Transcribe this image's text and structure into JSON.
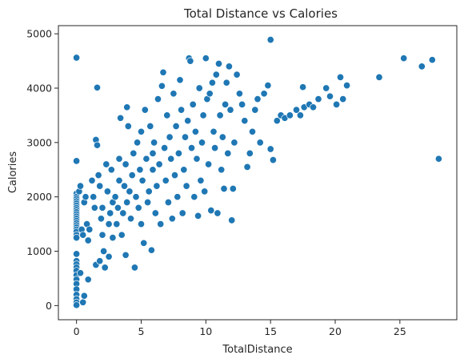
{
  "chart_data": {
    "type": "scatter",
    "title": "Total Distance vs Calories",
    "xlabel": "TotalDistance",
    "ylabel": "Calories",
    "xlim": [
      -1.4,
      29.4
    ],
    "ylim": [
      -260,
      5150
    ],
    "xticks": [
      0,
      5,
      10,
      15,
      20,
      25
    ],
    "yticks": [
      0,
      1000,
      2000,
      3000,
      4000,
      5000
    ],
    "grid": false,
    "color": "#1f77b4",
    "points": [
      [
        0,
        4560
      ],
      [
        0,
        2660
      ],
      [
        0,
        2060
      ],
      [
        0,
        2000
      ],
      [
        0,
        1960
      ],
      [
        0,
        1920
      ],
      [
        0,
        1880
      ],
      [
        0,
        1840
      ],
      [
        0,
        1800
      ],
      [
        0,
        1760
      ],
      [
        0,
        1720
      ],
      [
        0,
        1680
      ],
      [
        0,
        1640
      ],
      [
        0,
        1600
      ],
      [
        0,
        1560
      ],
      [
        0,
        1520
      ],
      [
        0,
        1480
      ],
      [
        0,
        1440
      ],
      [
        0,
        1400
      ],
      [
        0,
        1360
      ],
      [
        0,
        1300
      ],
      [
        0,
        1250
      ],
      [
        0,
        950
      ],
      [
        0,
        820
      ],
      [
        0,
        760
      ],
      [
        0,
        700
      ],
      [
        0,
        640
      ],
      [
        0,
        560
      ],
      [
        0,
        480
      ],
      [
        0,
        400
      ],
      [
        0,
        300
      ],
      [
        0,
        200
      ],
      [
        0,
        120
      ],
      [
        0,
        60
      ],
      [
        0,
        10
      ],
      [
        0.2,
        2100
      ],
      [
        0.3,
        2200
      ],
      [
        0.4,
        1400
      ],
      [
        0.5,
        1300
      ],
      [
        0.3,
        600
      ],
      [
        0.5,
        60
      ],
      [
        0.6,
        180
      ],
      [
        0.6,
        1900
      ],
      [
        0.7,
        2000
      ],
      [
        0.8,
        1500
      ],
      [
        0.9,
        1200
      ],
      [
        1.0,
        1400
      ],
      [
        0.9,
        480
      ],
      [
        1.2,
        2300
      ],
      [
        1.3,
        2000
      ],
      [
        1.4,
        1800
      ],
      [
        1.5,
        3050
      ],
      [
        1.6,
        2950
      ],
      [
        1.6,
        4010
      ],
      [
        1.7,
        2400
      ],
      [
        1.8,
        2200
      ],
      [
        1.9,
        1600
      ],
      [
        2.0,
        1800
      ],
      [
        2.0,
        1300
      ],
      [
        1.5,
        750
      ],
      [
        1.8,
        820
      ],
      [
        2.1,
        1000
      ],
      [
        2.2,
        700
      ],
      [
        2.3,
        2600
      ],
      [
        2.4,
        2100
      ],
      [
        2.5,
        1500
      ],
      [
        2.6,
        1700
      ],
      [
        2.7,
        2500
      ],
      [
        2.8,
        1900
      ],
      [
        2.8,
        1250
      ],
      [
        2.5,
        900
      ],
      [
        3.0,
        2000
      ],
      [
        3.1,
        1500
      ],
      [
        3.2,
        1800
      ],
      [
        3.3,
        2300
      ],
      [
        3.3,
        2700
      ],
      [
        3.4,
        3450
      ],
      [
        3.5,
        1300
      ],
      [
        3.6,
        1700
      ],
      [
        3.7,
        2200
      ],
      [
        3.8,
        2600
      ],
      [
        3.9,
        1900
      ],
      [
        3.9,
        3650
      ],
      [
        3.8,
        930
      ],
      [
        4.0,
        3300
      ],
      [
        4.1,
        2100
      ],
      [
        4.2,
        1600
      ],
      [
        4.3,
        2400
      ],
      [
        4.4,
        2800
      ],
      [
        4.5,
        700
      ],
      [
        4.6,
        2000
      ],
      [
        4.7,
        3000
      ],
      [
        4.8,
        1800
      ],
      [
        4.9,
        2500
      ],
      [
        5.0,
        3200
      ],
      [
        5.0,
        1500
      ],
      [
        5.1,
        2300
      ],
      [
        5.2,
        1150
      ],
      [
        5.3,
        3600
      ],
      [
        5.4,
        2700
      ],
      [
        5.5,
        1900
      ],
      [
        5.6,
        2100
      ],
      [
        5.7,
        3300
      ],
      [
        5.8,
        1020
      ],
      [
        5.9,
        2800
      ],
      [
        5.9,
        2500
      ],
      [
        6.0,
        3000
      ],
      [
        6.1,
        1700
      ],
      [
        6.2,
        2200
      ],
      [
        6.3,
        3800
      ],
      [
        6.4,
        2600
      ],
      [
        6.5,
        1500
      ],
      [
        6.6,
        4040
      ],
      [
        6.7,
        4290
      ],
      [
        6.8,
        2900
      ],
      [
        6.9,
        2300
      ],
      [
        7.0,
        3500
      ],
      [
        7.1,
        1900
      ],
      [
        7.2,
        3100
      ],
      [
        7.3,
        2700
      ],
      [
        7.4,
        1600
      ],
      [
        7.5,
        3900
      ],
      [
        7.6,
        2400
      ],
      [
        7.7,
        3300
      ],
      [
        7.8,
        2000
      ],
      [
        7.9,
        2800
      ],
      [
        8.0,
        4150
      ],
      [
        8.1,
        3600
      ],
      [
        8.2,
        1700
      ],
      [
        8.3,
        2500
      ],
      [
        8.4,
        3100
      ],
      [
        8.5,
        2200
      ],
      [
        8.6,
        3400
      ],
      [
        8.7,
        4550
      ],
      [
        8.8,
        4500
      ],
      [
        8.9,
        2900
      ],
      [
        9.0,
        3700
      ],
      [
        9.1,
        2000
      ],
      [
        9.2,
        3200
      ],
      [
        9.3,
        2700
      ],
      [
        9.4,
        1650
      ],
      [
        9.5,
        4000
      ],
      [
        9.6,
        2300
      ],
      [
        9.7,
        3000
      ],
      [
        9.8,
        3500
      ],
      [
        9.9,
        2100
      ],
      [
        10.0,
        4550
      ],
      [
        10.1,
        3800
      ],
      [
        10.2,
        2600
      ],
      [
        10.3,
        3900
      ],
      [
        10.4,
        1750
      ],
      [
        10.5,
        4100
      ],
      [
        10.6,
        3200
      ],
      [
        10.7,
        2900
      ],
      [
        10.8,
        4250
      ],
      [
        10.9,
        1700
      ],
      [
        11.0,
        4450
      ],
      [
        11.1,
        3500
      ],
      [
        11.2,
        2500
      ],
      [
        11.3,
        3100
      ],
      [
        11.4,
        2150
      ],
      [
        11.5,
        3700
      ],
      [
        11.6,
        4100
      ],
      [
        11.7,
        2800
      ],
      [
        11.8,
        4400
      ],
      [
        11.9,
        3600
      ],
      [
        12.0,
        1570
      ],
      [
        12.1,
        2150
      ],
      [
        12.2,
        3000
      ],
      [
        12.4,
        4250
      ],
      [
        12.6,
        3900
      ],
      [
        12.8,
        3700
      ],
      [
        13.0,
        3400
      ],
      [
        13.2,
        2550
      ],
      [
        13.4,
        2800
      ],
      [
        13.6,
        3200
      ],
      [
        13.8,
        3600
      ],
      [
        14.0,
        3800
      ],
      [
        14.2,
        3000
      ],
      [
        14.5,
        3900
      ],
      [
        14.8,
        4050
      ],
      [
        15.0,
        4890
      ],
      [
        15.0,
        2880
      ],
      [
        15.2,
        2680
      ],
      [
        15.5,
        3400
      ],
      [
        15.8,
        3500
      ],
      [
        16.1,
        3450
      ],
      [
        16.5,
        3500
      ],
      [
        17.0,
        3600
      ],
      [
        17.3,
        3500
      ],
      [
        17.5,
        4020
      ],
      [
        17.6,
        3650
      ],
      [
        18.0,
        3700
      ],
      [
        18.3,
        3650
      ],
      [
        18.7,
        3800
      ],
      [
        19.3,
        4000
      ],
      [
        19.6,
        3850
      ],
      [
        20.1,
        3700
      ],
      [
        20.4,
        4200
      ],
      [
        20.6,
        3800
      ],
      [
        20.9,
        4050
      ],
      [
        23.4,
        4200
      ],
      [
        25.3,
        4550
      ],
      [
        26.7,
        4400
      ],
      [
        27.5,
        4520
      ],
      [
        28.0,
        2700
      ]
    ]
  }
}
